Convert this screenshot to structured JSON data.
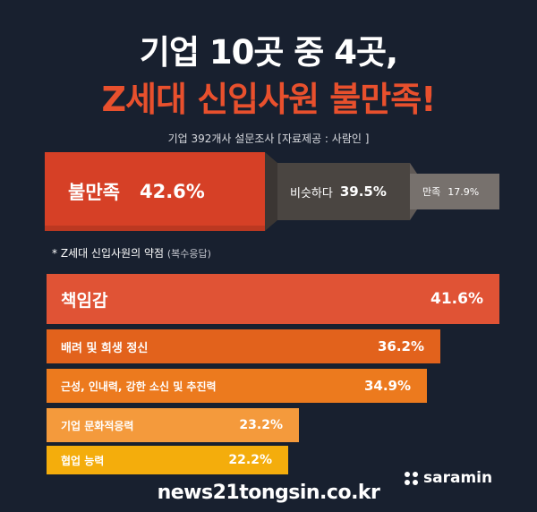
{
  "header": {
    "title_line1": "기업 10곳 중 4곳,",
    "title_line2": "Z세대 신입사원 불만족!",
    "subtitle": "기업 392개사  설문조사 [자료제공 : 사람인 ]"
  },
  "satisfaction": [
    {
      "label": "불만족",
      "value_text": "42.6%",
      "value": 42.6,
      "color": "#d64026"
    },
    {
      "label": "비슷하다",
      "value_text": "39.5%",
      "value": 39.5,
      "color": "#4a4541"
    },
    {
      "label": "만족",
      "value_text": "17.9%",
      "value": 17.9,
      "color": "#77716d"
    }
  ],
  "weakness_title": "* Z세대 신입사원의 약점",
  "weakness_note": "(복수응답)",
  "chart_data": {
    "type": "bar",
    "categories": [
      "책임감",
      "배려 및 희생 정신",
      "근성, 인내력, 강한 소신 및 추진력",
      "기업 문화적응력",
      "협업 능력"
    ],
    "values": [
      41.6,
      36.2,
      34.9,
      23.2,
      22.2
    ],
    "value_labels": [
      "41.6%",
      "36.2%",
      "34.9%",
      "23.2%",
      "22.2%"
    ],
    "colors": [
      "#e05335",
      "#e2621c",
      "#ec7a1e",
      "#f49a3c",
      "#f4ad0c"
    ],
    "orientation": "horizontal"
  },
  "brand": "saramin",
  "watermark": "news21tongsin.co.kr"
}
